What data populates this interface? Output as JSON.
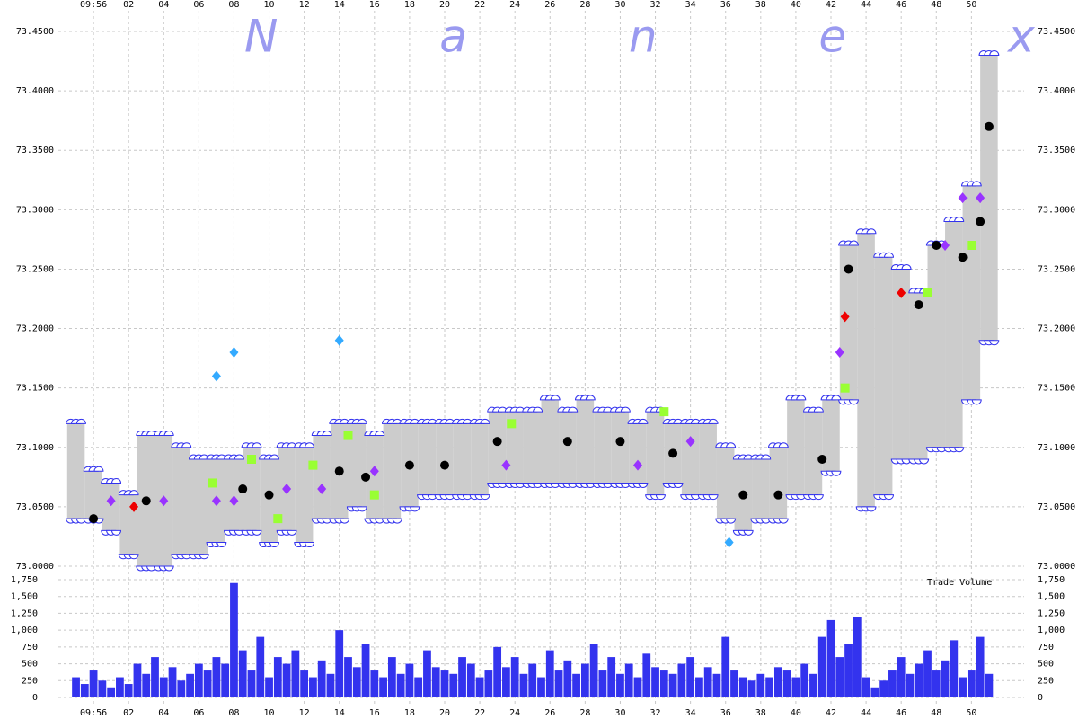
{
  "chart_data": {
    "type": "tick",
    "watermark": "N a n e x",
    "volume_label": "Trade Volume",
    "xlim": [
      -2,
      53
    ],
    "xticks": [
      {
        "value": 0,
        "label": "09:56"
      },
      {
        "value": 2,
        "label": "02"
      },
      {
        "value": 4,
        "label": "04"
      },
      {
        "value": 6,
        "label": "06"
      },
      {
        "value": 8,
        "label": "08"
      },
      {
        "value": 10,
        "label": "10"
      },
      {
        "value": 12,
        "label": "12"
      },
      {
        "value": 14,
        "label": "14"
      },
      {
        "value": 16,
        "label": "16"
      },
      {
        "value": 18,
        "label": "18"
      },
      {
        "value": 20,
        "label": "20"
      },
      {
        "value": 22,
        "label": "22"
      },
      {
        "value": 24,
        "label": "24"
      },
      {
        "value": 26,
        "label": "26"
      },
      {
        "value": 28,
        "label": "28"
      },
      {
        "value": 30,
        "label": "30"
      },
      {
        "value": 32,
        "label": "32"
      },
      {
        "value": 34,
        "label": "34"
      },
      {
        "value": 36,
        "label": "36"
      },
      {
        "value": 38,
        "label": "38"
      },
      {
        "value": 40,
        "label": "40"
      },
      {
        "value": 42,
        "label": "42"
      },
      {
        "value": 44,
        "label": "44"
      },
      {
        "value": 46,
        "label": "46"
      },
      {
        "value": 48,
        "label": "48"
      },
      {
        "value": 50,
        "label": "50"
      }
    ],
    "ylim": [
      73.0,
      73.45
    ],
    "yticks": [
      {
        "value": 73.0,
        "label": "73.0000"
      },
      {
        "value": 73.05,
        "label": "73.0500"
      },
      {
        "value": 73.1,
        "label": "73.1000"
      },
      {
        "value": 73.15,
        "label": "73.1500"
      },
      {
        "value": 73.2,
        "label": "73.2000"
      },
      {
        "value": 73.25,
        "label": "73.2500"
      },
      {
        "value": 73.3,
        "label": "73.3000"
      },
      {
        "value": 73.35,
        "label": "73.3500"
      },
      {
        "value": 73.4,
        "label": "73.4000"
      },
      {
        "value": 73.45,
        "label": "73.4500"
      }
    ],
    "vlim": [
      0,
      1750
    ],
    "vticks": [
      0,
      {
        "value": 250,
        "label": "250"
      },
      {
        "value": 500,
        "label": "500"
      },
      {
        "value": 750,
        "label": "750"
      },
      {
        "value": 1000,
        "label": "1,000"
      },
      {
        "value": 1250,
        "label": "1,250"
      },
      {
        "value": 1500,
        "label": "1,500"
      },
      {
        "value": 1750,
        "label": "1,750"
      }
    ],
    "quotes": {
      "band_color": "#cccccc",
      "quote_color": "#3333ee",
      "x": [
        -1,
        0,
        1,
        2,
        3,
        4,
        5,
        6,
        7,
        8,
        9,
        10,
        11,
        12,
        13,
        14,
        15,
        16,
        17,
        18,
        19,
        20,
        21,
        22,
        23,
        24,
        25,
        26,
        27,
        28,
        29,
        30,
        31,
        32,
        33,
        34,
        35,
        36,
        37,
        38,
        39,
        40,
        41,
        42,
        43,
        44,
        45,
        46,
        47,
        48,
        49,
        50,
        51
      ],
      "bid": [
        73.04,
        73.04,
        73.03,
        73.01,
        73.0,
        73.0,
        73.01,
        73.01,
        73.02,
        73.03,
        73.03,
        73.02,
        73.03,
        73.02,
        73.04,
        73.04,
        73.05,
        73.04,
        73.04,
        73.05,
        73.06,
        73.06,
        73.06,
        73.06,
        73.07,
        73.07,
        73.07,
        73.07,
        73.07,
        73.07,
        73.07,
        73.07,
        73.07,
        73.06,
        73.07,
        73.06,
        73.06,
        73.04,
        73.03,
        73.04,
        73.04,
        73.06,
        73.06,
        73.08,
        73.14,
        73.05,
        73.06,
        73.09,
        73.09,
        73.1,
        73.1,
        73.14,
        73.19
      ],
      "ask": [
        73.12,
        73.08,
        73.07,
        73.06,
        73.11,
        73.11,
        73.1,
        73.09,
        73.09,
        73.09,
        73.1,
        73.09,
        73.1,
        73.1,
        73.11,
        73.12,
        73.12,
        73.11,
        73.12,
        73.12,
        73.12,
        73.12,
        73.12,
        73.12,
        73.13,
        73.13,
        73.13,
        73.14,
        73.13,
        73.14,
        73.13,
        73.13,
        73.12,
        73.13,
        73.12,
        73.12,
        73.12,
        73.1,
        73.09,
        73.09,
        73.1,
        73.14,
        73.13,
        73.14,
        73.27,
        73.28,
        73.26,
        73.25,
        73.23,
        73.27,
        73.29,
        73.32,
        73.43
      ]
    },
    "trades": [
      {
        "color": "#000000",
        "x": [
          0,
          3,
          8.5,
          10,
          14,
          15.5,
          18,
          20,
          23,
          27,
          30,
          33,
          37,
          39,
          41.5,
          43,
          47,
          48,
          49.5,
          50.5,
          51
        ],
        "values": [
          73.04,
          73.055,
          73.065,
          73.06,
          73.08,
          73.075,
          73.085,
          73.085,
          73.105,
          73.105,
          73.105,
          73.095,
          73.06,
          73.06,
          73.09,
          73.25,
          73.22,
          73.27,
          73.26,
          73.29,
          73.37
        ]
      },
      {
        "color": "#9933ff",
        "x": [
          1,
          4,
          7,
          8,
          11,
          13,
          16,
          23.5,
          31,
          34,
          42.5,
          48.5,
          49.5,
          50.5
        ],
        "values": [
          73.055,
          73.055,
          73.055,
          73.055,
          73.065,
          73.065,
          73.08,
          73.085,
          73.085,
          73.105,
          73.18,
          73.27,
          73.31,
          73.31
        ]
      },
      {
        "color": "#99ff33",
        "x": [
          6.8,
          9,
          10.5,
          12.5,
          14.5,
          16,
          23.8,
          32.5,
          42.8,
          47.5,
          50
        ],
        "values": [
          73.07,
          73.09,
          73.04,
          73.085,
          73.11,
          73.06,
          73.12,
          73.13,
          73.15,
          73.23,
          73.27
        ]
      },
      {
        "color": "#33aaff",
        "x": [
          8,
          7,
          14,
          36.2
        ],
        "values": [
          73.18,
          73.16,
          73.19,
          73.02
        ]
      },
      {
        "color": "#ee0000",
        "x": [
          2.3,
          42.8,
          46
        ],
        "values": [
          73.05,
          73.21,
          73.23
        ]
      }
    ],
    "volume": {
      "color": "#3333ee",
      "x": [
        -1,
        -0.5,
        0,
        0.5,
        1,
        1.5,
        2,
        2.5,
        3,
        3.5,
        4,
        4.5,
        5,
        5.5,
        6,
        6.5,
        7,
        7.5,
        8,
        8.5,
        9,
        9.5,
        10,
        10.5,
        11,
        11.5,
        12,
        12.5,
        13,
        13.5,
        14,
        14.5,
        15,
        15.5,
        16,
        16.5,
        17,
        17.5,
        18,
        18.5,
        19,
        19.5,
        20,
        20.5,
        21,
        21.5,
        22,
        22.5,
        23,
        23.5,
        24,
        24.5,
        25,
        25.5,
        26,
        26.5,
        27,
        27.5,
        28,
        28.5,
        29,
        29.5,
        30,
        30.5,
        31,
        31.5,
        32,
        32.5,
        33,
        33.5,
        34,
        34.5,
        35,
        35.5,
        36,
        36.5,
        37,
        37.5,
        38,
        38.5,
        39,
        39.5,
        40,
        40.5,
        41,
        41.5,
        42,
        42.5,
        43,
        43.5,
        44,
        44.5,
        45,
        45.5,
        46,
        46.5,
        47,
        47.5,
        48,
        48.5,
        49,
        49.5,
        50,
        50.5,
        51
      ],
      "values": [
        300,
        200,
        400,
        250,
        150,
        300,
        200,
        500,
        350,
        600,
        300,
        450,
        250,
        350,
        500,
        400,
        600,
        500,
        1700,
        700,
        400,
        900,
        300,
        600,
        500,
        700,
        400,
        300,
        550,
        350,
        1000,
        600,
        450,
        800,
        400,
        300,
        600,
        350,
        500,
        300,
        700,
        450,
        400,
        350,
        600,
        500,
        300,
        400,
        750,
        450,
        600,
        350,
        500,
        300,
        700,
        400,
        550,
        350,
        500,
        800,
        400,
        600,
        350,
        500,
        300,
        650,
        450,
        400,
        350,
        500,
        600,
        300,
        450,
        350,
        900,
        400,
        300,
        250,
        350,
        300,
        450,
        400,
        300,
        500,
        350,
        900,
        1150,
        600,
        800,
        1200,
        300,
        150,
        250,
        400,
        600,
        350,
        500,
        700,
        400,
        550,
        850,
        300,
        400,
        900,
        350
      ]
    }
  }
}
